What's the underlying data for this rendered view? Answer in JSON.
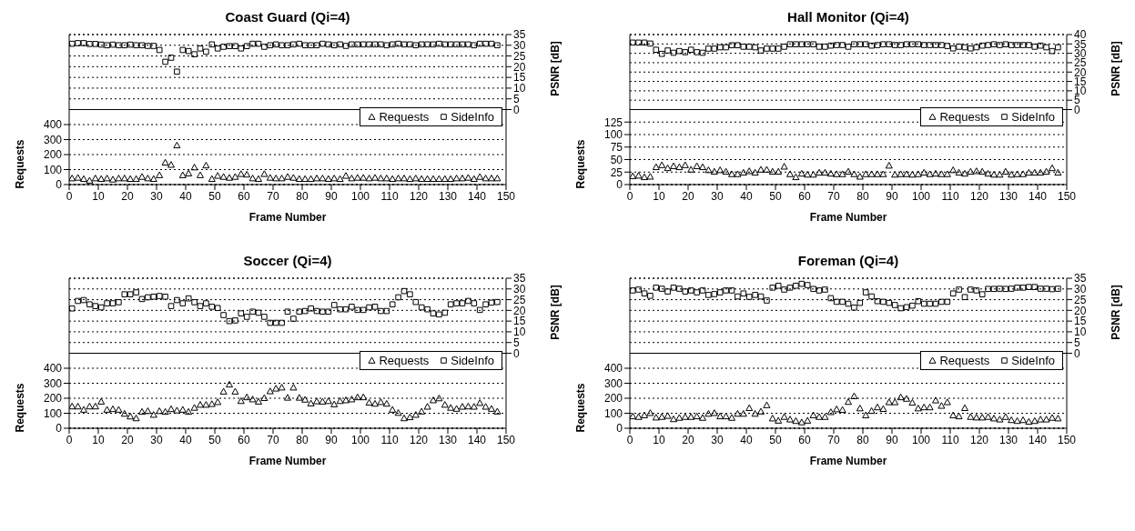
{
  "chart_data": [
    {
      "type": "scatter",
      "title": "Coast Guard (Qi=4)",
      "xlabel": "Frame Number",
      "ylabel": "Requests",
      "y2label": "PSNR [dB]",
      "x": [
        1,
        3,
        5,
        7,
        9,
        11,
        13,
        15,
        17,
        19,
        21,
        23,
        25,
        27,
        29,
        31,
        33,
        35,
        37,
        39,
        41,
        43,
        45,
        47,
        49,
        51,
        53,
        55,
        57,
        59,
        61,
        63,
        65,
        67,
        69,
        71,
        73,
        75,
        77,
        79,
        81,
        83,
        85,
        87,
        89,
        91,
        93,
        95,
        97,
        99,
        101,
        103,
        105,
        107,
        109,
        111,
        113,
        115,
        117,
        119,
        121,
        123,
        125,
        127,
        129,
        131,
        133,
        135,
        137,
        139,
        141,
        143,
        145,
        147
      ],
      "series": [
        {
          "name": "Requests",
          "color": "#000000",
          "marker": "triangle",
          "values": [
            42,
            46,
            38,
            27,
            42,
            38,
            42,
            34,
            42,
            42,
            38,
            38,
            52,
            42,
            38,
            63,
            147,
            132,
            262,
            63,
            75,
            115,
            63,
            128,
            38,
            59,
            52,
            46,
            52,
            71,
            67,
            42,
            38,
            71,
            46,
            42,
            42,
            52,
            46,
            38,
            38,
            38,
            42,
            42,
            38,
            42,
            38,
            59,
            42,
            46,
            46,
            42,
            46,
            42,
            42,
            38,
            42,
            42,
            38,
            42,
            38,
            38,
            38,
            38,
            38,
            38,
            42,
            42,
            46,
            38,
            52,
            42,
            42,
            42
          ]
        },
        {
          "name": "SideInfo",
          "color": "#000000",
          "marker": "square",
          "axis": "y2",
          "values": [
            30.7,
            31,
            31,
            30.6,
            30.6,
            30.3,
            30,
            30.3,
            30,
            30,
            30.3,
            30,
            30,
            29.7,
            29.7,
            27.8,
            22.3,
            24.2,
            17.7,
            27.8,
            27.3,
            25.8,
            28.5,
            27,
            30.4,
            28.5,
            29.3,
            29.6,
            29.6,
            28.5,
            29.6,
            30.7,
            30.7,
            29.3,
            30,
            30.4,
            30,
            30,
            30.4,
            30.7,
            30,
            30,
            30,
            30.7,
            30.4,
            30,
            30.4,
            29.7,
            30.4,
            30.4,
            30.4,
            30.4,
            30.4,
            30.4,
            30,
            30.4,
            30.7,
            30.4,
            30.4,
            30,
            30.4,
            30.4,
            30.4,
            30.7,
            30.4,
            30.4,
            30.4,
            30.4,
            30.4,
            30,
            30.7,
            30.7,
            30.7,
            30
          ]
        }
      ],
      "xlim": [
        0,
        150
      ],
      "xticks": [
        0,
        10,
        20,
        30,
        40,
        50,
        60,
        70,
        80,
        90,
        100,
        110,
        120,
        130,
        140,
        150
      ],
      "ylim": [
        0,
        1000
      ],
      "yticks": [
        0,
        100,
        200,
        300,
        400
      ],
      "y2lim": [
        -35,
        35
      ],
      "y2ticks": [
        0,
        5,
        10,
        15,
        20,
        25,
        30,
        35
      ],
      "ref_lines": [
        {
          "axis": "y2",
          "value": 0,
          "color": "#000000"
        }
      ],
      "grid": "y",
      "legend": "right"
    },
    {
      "type": "scatter",
      "title": "Hall Monitor (Qi=4)",
      "xlabel": "Frame Number",
      "ylabel": "Requests",
      "y2label": "PSNR [dB]",
      "x": [
        1,
        3,
        5,
        7,
        9,
        11,
        13,
        15,
        17,
        19,
        21,
        23,
        25,
        27,
        29,
        31,
        33,
        35,
        37,
        39,
        41,
        43,
        45,
        47,
        49,
        51,
        53,
        55,
        57,
        59,
        61,
        63,
        65,
        67,
        69,
        71,
        73,
        75,
        77,
        79,
        81,
        83,
        85,
        87,
        89,
        91,
        93,
        95,
        97,
        99,
        101,
        103,
        105,
        107,
        109,
        111,
        113,
        115,
        117,
        119,
        121,
        123,
        125,
        127,
        129,
        131,
        133,
        135,
        137,
        139,
        141,
        143,
        145,
        147
      ],
      "series": [
        {
          "name": "Requests",
          "color": "#000000",
          "marker": "triangle",
          "values": [
            17,
            18,
            15,
            16,
            35,
            39,
            33,
            37,
            35,
            39,
            30,
            37,
            35,
            29,
            26,
            29,
            26,
            21,
            21,
            24,
            27,
            24,
            30,
            30,
            26,
            26,
            36,
            21,
            15,
            22,
            20,
            20,
            24,
            24,
            22,
            21,
            21,
            26,
            21,
            16,
            21,
            21,
            21,
            21,
            38,
            20,
            21,
            21,
            20,
            21,
            24,
            21,
            22,
            21,
            21,
            29,
            24,
            22,
            26,
            27,
            26,
            22,
            20,
            20,
            26,
            20,
            21,
            21,
            24,
            24,
            24,
            26,
            33,
            24
          ]
        },
        {
          "name": "SideInfo",
          "color": "#000000",
          "marker": "square",
          "axis": "y2",
          "values": [
            35.7,
            35.7,
            35.7,
            35.2,
            31.9,
            29.7,
            31.5,
            30.3,
            31.2,
            30.6,
            31.9,
            30.6,
            30.3,
            32.5,
            32.5,
            33.2,
            33.2,
            34.3,
            34.3,
            33.5,
            33.5,
            33.2,
            31.5,
            32.5,
            32.5,
            32.5,
            33.5,
            34.8,
            34.8,
            34.8,
            34.8,
            34.8,
            33.5,
            33.5,
            34.1,
            34.4,
            34.4,
            33.5,
            34.8,
            34.8,
            34.8,
            34.1,
            34.4,
            34.8,
            34.8,
            34.4,
            34.4,
            34.8,
            34.8,
            34.8,
            34.4,
            34.4,
            34.4,
            34.4,
            33.9,
            32.6,
            33.5,
            33.2,
            32.6,
            33.2,
            34.1,
            34.4,
            34.8,
            34.4,
            34.8,
            34.4,
            34.4,
            34.4,
            34.4,
            33.5,
            34.1,
            33.2,
            31.2,
            33.2
          ]
        }
      ],
      "xlim": [
        0,
        150
      ],
      "xticks": [
        0,
        10,
        20,
        30,
        40,
        50,
        60,
        70,
        80,
        90,
        100,
        110,
        120,
        130,
        140,
        150
      ],
      "ylim": [
        0,
        300
      ],
      "yticks": [
        0,
        25,
        50,
        75,
        100,
        125
      ],
      "y2lim": [
        -40,
        40
      ],
      "y2ticks": [
        0,
        5,
        10,
        15,
        20,
        25,
        30,
        35,
        40
      ],
      "ref_lines": [
        {
          "axis": "y2",
          "value": 0,
          "color": "#000000"
        }
      ],
      "grid": "y",
      "legend": "right"
    },
    {
      "type": "scatter",
      "title": "Soccer (Qi=4)",
      "xlabel": "Frame Number",
      "ylabel": "Requests",
      "y2label": "PSNR [dB]",
      "x": [
        1,
        3,
        5,
        7,
        9,
        11,
        13,
        15,
        17,
        19,
        21,
        23,
        25,
        27,
        29,
        31,
        33,
        35,
        37,
        39,
        41,
        43,
        45,
        47,
        49,
        51,
        53,
        55,
        57,
        59,
        61,
        63,
        65,
        67,
        69,
        71,
        73,
        75,
        77,
        79,
        81,
        83,
        85,
        87,
        89,
        91,
        93,
        95,
        97,
        99,
        101,
        103,
        105,
        107,
        109,
        111,
        113,
        115,
        117,
        119,
        121,
        123,
        125,
        127,
        129,
        131,
        133,
        135,
        137,
        139,
        141,
        143,
        145,
        147
      ],
      "series": [
        {
          "name": "Requests",
          "color": "#000000",
          "marker": "triangle",
          "values": [
            146,
            146,
            124,
            146,
            146,
            178,
            124,
            128,
            124,
            97,
            79,
            67,
            110,
            115,
            90,
            115,
            110,
            128,
            119,
            124,
            110,
            137,
            157,
            157,
            162,
            175,
            245,
            292,
            245,
            182,
            207,
            193,
            178,
            202,
            247,
            265,
            272,
            204,
            272,
            204,
            191,
            166,
            180,
            178,
            182,
            160,
            182,
            187,
            193,
            207,
            207,
            171,
            164,
            175,
            164,
            124,
            103,
            67,
            74,
            90,
            112,
            144,
            187,
            200,
            157,
            137,
            130,
            144,
            146,
            144,
            169,
            144,
            130,
            112
          ]
        },
        {
          "name": "SideInfo",
          "color": "#000000",
          "marker": "square",
          "axis": "y2",
          "values": [
            20.9,
            24.4,
            24.8,
            22.8,
            22,
            21.4,
            23.3,
            23.3,
            23.8,
            27.5,
            27.5,
            28.4,
            25.3,
            26.1,
            26.4,
            26.7,
            26.4,
            22,
            24.8,
            23.3,
            25.6,
            23.8,
            22,
            23.3,
            21.7,
            21.1,
            17.8,
            15,
            15.3,
            18.6,
            17,
            19.4,
            18.9,
            17,
            14.2,
            14.2,
            14.2,
            19.4,
            16.1,
            19.4,
            19.7,
            20.9,
            19.7,
            19.4,
            19.4,
            22.5,
            20.5,
            20.5,
            21.7,
            20.2,
            20.2,
            21.4,
            21.7,
            19.7,
            19.7,
            22.8,
            26.1,
            29,
            27.5,
            23.9,
            21.4,
            20.5,
            18.6,
            18.1,
            18.9,
            22.8,
            23.3,
            23.3,
            24.4,
            23.3,
            20.2,
            22.8,
            23.6,
            23.9
          ]
        }
      ],
      "xlim": [
        0,
        150
      ],
      "xticks": [
        0,
        10,
        20,
        30,
        40,
        50,
        60,
        70,
        80,
        90,
        100,
        110,
        120,
        130,
        140,
        150
      ],
      "ylim": [
        0,
        1000
      ],
      "yticks": [
        0,
        100,
        200,
        300,
        400
      ],
      "y2lim": [
        -35,
        35
      ],
      "y2ticks": [
        0,
        5,
        10,
        15,
        20,
        25,
        30,
        35
      ],
      "ref_lines": [
        {
          "axis": "y2",
          "value": 0,
          "color": "#000000"
        }
      ],
      "grid": "y",
      "legend": "right"
    },
    {
      "type": "scatter",
      "title": "Foreman (Qi=4)",
      "xlabel": "Frame Number",
      "ylabel": "Requests",
      "y2label": "PSNR [dB]",
      "x": [
        1,
        3,
        5,
        7,
        9,
        11,
        13,
        15,
        17,
        19,
        21,
        23,
        25,
        27,
        29,
        31,
        33,
        35,
        37,
        39,
        41,
        43,
        45,
        47,
        49,
        51,
        53,
        55,
        57,
        59,
        61,
        63,
        65,
        67,
        69,
        71,
        73,
        75,
        77,
        79,
        81,
        83,
        85,
        87,
        89,
        91,
        93,
        95,
        97,
        99,
        101,
        103,
        105,
        107,
        109,
        111,
        113,
        115,
        117,
        119,
        121,
        123,
        125,
        127,
        129,
        131,
        133,
        135,
        137,
        139,
        141,
        143,
        145,
        147
      ],
      "series": [
        {
          "name": "Requests",
          "color": "#000000",
          "marker": "triangle",
          "values": [
            80,
            76,
            87,
            102,
            72,
            76,
            83,
            61,
            70,
            76,
            76,
            80,
            70,
            97,
            102,
            80,
            80,
            70,
            97,
            97,
            135,
            97,
            112,
            154,
            66,
            51,
            76,
            59,
            49,
            40,
            51,
            87,
            76,
            76,
            108,
            127,
            123,
            176,
            214,
            133,
            87,
            116,
            140,
            129,
            174,
            174,
            207,
            197,
            171,
            133,
            140,
            140,
            186,
            150,
            174,
            87,
            80,
            135,
            76,
            72,
            72,
            76,
            66,
            59,
            76,
            55,
            49,
            55,
            44,
            49,
            59,
            59,
            70,
            66
          ]
        },
        {
          "name": "SideInfo",
          "color": "#000000",
          "marker": "square",
          "axis": "y2",
          "values": [
            29.3,
            29.7,
            27.9,
            26.8,
            30.6,
            30.1,
            28.8,
            30.6,
            30.1,
            28.8,
            29.3,
            28.4,
            29.3,
            27.2,
            27.6,
            28.4,
            29.3,
            29.3,
            26.5,
            27.9,
            26.3,
            27.2,
            26.5,
            24.6,
            30.6,
            31.5,
            29.7,
            30.6,
            31.5,
            32.4,
            31.8,
            30,
            29.3,
            29.7,
            25.7,
            24,
            24,
            23.1,
            21.3,
            23.5,
            28.4,
            26.5,
            24.3,
            24,
            23.5,
            22.5,
            21,
            21.5,
            22.2,
            24.3,
            23.1,
            23.1,
            23.1,
            24,
            24,
            27.9,
            29.7,
            26.2,
            29.7,
            29.3,
            27.5,
            30,
            30,
            30.1,
            30,
            30.1,
            30.6,
            30.6,
            30.9,
            30.9,
            30.1,
            30.1,
            29.9,
            30.1
          ]
        }
      ],
      "xlim": [
        0,
        150
      ],
      "xticks": [
        0,
        10,
        20,
        30,
        40,
        50,
        60,
        70,
        80,
        90,
        100,
        110,
        120,
        130,
        140,
        150
      ],
      "ylim": [
        0,
        1000
      ],
      "yticks": [
        0,
        100,
        200,
        300,
        400
      ],
      "y2lim": [
        -35,
        35
      ],
      "y2ticks": [
        0,
        5,
        10,
        15,
        20,
        25,
        30,
        35
      ],
      "ref_lines": [
        {
          "axis": "y2",
          "value": 0,
          "color": "#000000"
        }
      ],
      "grid": "y",
      "legend": "right"
    }
  ]
}
